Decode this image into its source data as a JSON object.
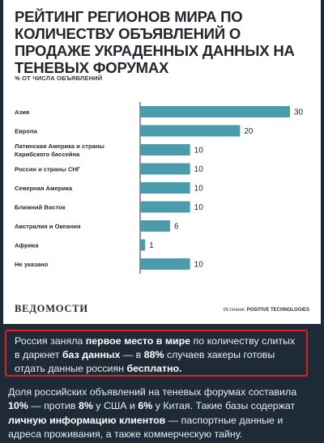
{
  "card": {
    "title": "РЕЙТИНГ РЕГИОНОВ МИРА ПО КОЛИЧЕСТВУ ОБЪЯВЛЕНИЙ О ПРОДАЖЕ УКРАДЕННЫХ ДАННЫХ НА ТЕНЕВЫХ ФОРУМАХ",
    "subtitle": "% ОТ ЧИСЛА ОБЪЯВЛЕНИЙ",
    "logo": "ВЕДОМОСТИ",
    "source_label": "Источник:",
    "source_value": "POSITIVE TECHNOLOGIES",
    "bar_color": "#4a9bab"
  },
  "chart_data": {
    "type": "bar",
    "orientation": "horizontal",
    "title": "РЕЙТИНГ РЕГИОНОВ МИРА ПО КОЛИЧЕСТВУ ОБЪЯВЛЕНИЙ О ПРОДАЖЕ УКРАДЕННЫХ ДАННЫХ НА ТЕНЕВЫХ ФОРУМАХ",
    "ylabel": "% ОТ ЧИСЛА ОБЪЯВЛЕНИЙ",
    "categories": [
      "Азия",
      "Европа",
      "Латинская Америка и страны Карибского бассейна",
      "Россия и страны СНГ",
      "Северная Америка",
      "Ближний Восток",
      "Австралия и Океания",
      "Африка",
      "Не указано"
    ],
    "values": [
      30,
      20,
      10,
      10,
      10,
      10,
      6,
      1,
      10
    ],
    "xlim": [
      0,
      30
    ],
    "grid": false
  },
  "text": {
    "highlight": [
      {
        "t": "Россия заняла ",
        "b": false
      },
      {
        "t": "первое место в мире",
        "b": true
      },
      {
        "t": " по количеству слитых в даркнет ",
        "b": false
      },
      {
        "t": "баз данных",
        "b": true
      },
      {
        "t": " — в ",
        "b": false
      },
      {
        "t": "88%",
        "b": true
      },
      {
        "t": " случаев хакеры готовы отдать данные россиян ",
        "b": false
      },
      {
        "t": "бесплатно.",
        "b": true
      }
    ],
    "paragraph": [
      {
        "t": "Доля российских объявлений на теневых форумах составила ",
        "b": false
      },
      {
        "t": "10%",
        "b": true
      },
      {
        "t": " — против ",
        "b": false
      },
      {
        "t": "8%",
        "b": true
      },
      {
        "t": " у США и ",
        "b": false
      },
      {
        "t": "6%",
        "b": true
      },
      {
        "t": " у Китая. Такие базы содержат ",
        "b": false
      },
      {
        "t": "личную информацию клиентов",
        "b": true
      },
      {
        "t": " — паспортные данные и адреса проживания, а также коммерческую тайну.",
        "b": false
      }
    ]
  }
}
